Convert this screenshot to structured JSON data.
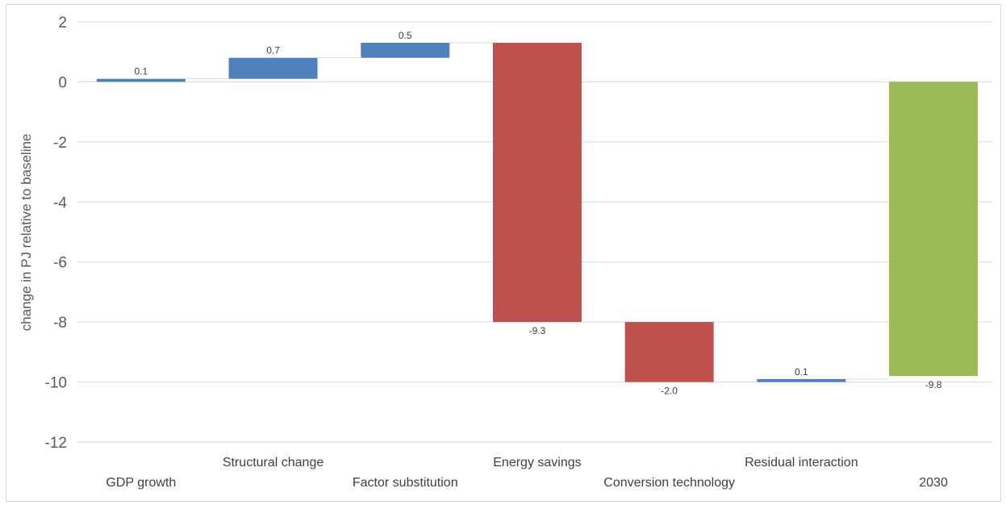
{
  "chart_data": {
    "type": "waterfall",
    "ylabel": "change in PJ relative to baseline",
    "ylim": [
      -12,
      2
    ],
    "yticks": [
      2,
      0,
      -2,
      -4,
      -6,
      -8,
      -10,
      -12
    ],
    "grid": true,
    "categories": [
      "GDP growth",
      "Structural change",
      "Factor substitution",
      "Energy savings",
      "Conversion technology",
      "Residual interaction",
      "2030"
    ],
    "deltas": [
      0.1,
      0.7,
      0.5,
      -9.3,
      -2.0,
      0.1,
      -9.8
    ],
    "data_labels": [
      "0.1",
      "0.7",
      "0.5",
      "-9.3",
      "-2.0",
      "0.1",
      "-9.8"
    ],
    "bar_kinds": [
      "increase",
      "increase",
      "increase",
      "decrease",
      "decrease",
      "increase",
      "total"
    ],
    "colors": {
      "increase": "#4f81bd",
      "decrease": "#c0504d",
      "total": "#9bbb59",
      "grid": "#d9d9d9",
      "connector": "#d9d9d9"
    }
  }
}
